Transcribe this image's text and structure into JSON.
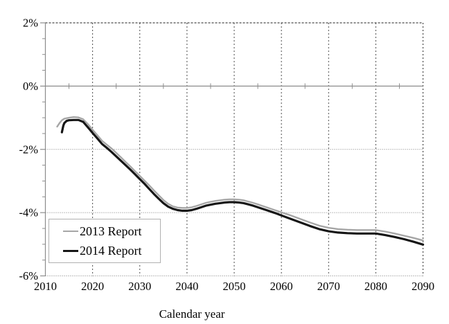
{
  "figure": {
    "background": "#ffffff",
    "text_color": "#000000"
  },
  "chart_data": {
    "type": "line",
    "title": "",
    "xlabel": "Calendar year",
    "ylabel": "",
    "xlim": [
      2010,
      2090
    ],
    "ylim": [
      -6,
      2
    ],
    "x_ticks": [
      2010,
      2020,
      2030,
      2040,
      2050,
      2060,
      2070,
      2080,
      2090
    ],
    "x_minor_ticks": [
      2015,
      2025,
      2035,
      2045,
      2055,
      2065,
      2075,
      2085
    ],
    "y_ticks": [
      "2%",
      "0%",
      "-2%",
      "-4%",
      "-6%"
    ],
    "y_tick_values": [
      2,
      0,
      -2,
      -4,
      -6
    ],
    "y_minor_ticks": [
      1.5,
      1.0,
      0.5,
      -0.5,
      -1.0,
      -1.5,
      -2.5,
      -3.0,
      -3.5,
      -4.5,
      -5.0,
      -5.5
    ],
    "grid": {
      "vertical_dashed_at": [
        2020,
        2030,
        2040,
        2050,
        2060,
        2070,
        2080
      ],
      "horizontal_dotted_at": [
        -2,
        -4
      ],
      "zero_axis_at": 0,
      "grid_on": true
    },
    "legend_position": "lower-left",
    "style": {
      "frame_color": "#4a4a4a",
      "grid_color": "#7a7a7a",
      "axis_color": "#8c8c8c",
      "legend_border_color": "#b0b0b0"
    },
    "series": [
      {
        "name": "2013 Report",
        "color": "#a6a6a6",
        "width": 2.4,
        "points": [
          [
            2012.5,
            -1.28
          ],
          [
            2013,
            -1.17
          ],
          [
            2013.5,
            -1.08
          ],
          [
            2014,
            -1.03
          ],
          [
            2015,
            -1.0
          ],
          [
            2016,
            -0.98
          ],
          [
            2017,
            -0.99
          ],
          [
            2018,
            -1.05
          ],
          [
            2019,
            -1.2
          ],
          [
            2020,
            -1.38
          ],
          [
            2021,
            -1.55
          ],
          [
            2022,
            -1.73
          ],
          [
            2023,
            -1.85
          ],
          [
            2024,
            -1.97
          ],
          [
            2025,
            -2.11
          ],
          [
            2026,
            -2.25
          ],
          [
            2027,
            -2.4
          ],
          [
            2028,
            -2.54
          ],
          [
            2029,
            -2.69
          ],
          [
            2030,
            -2.84
          ],
          [
            2031,
            -2.99
          ],
          [
            2032,
            -3.14
          ],
          [
            2033,
            -3.3
          ],
          [
            2034,
            -3.45
          ],
          [
            2035,
            -3.6
          ],
          [
            2036,
            -3.72
          ],
          [
            2037,
            -3.8
          ],
          [
            2038,
            -3.84
          ],
          [
            2039,
            -3.85
          ],
          [
            2040,
            -3.85
          ],
          [
            2041,
            -3.83
          ],
          [
            2042,
            -3.79
          ],
          [
            2043,
            -3.74
          ],
          [
            2044,
            -3.69
          ],
          [
            2045,
            -3.66
          ],
          [
            2046,
            -3.63
          ],
          [
            2047,
            -3.61
          ],
          [
            2048,
            -3.59
          ],
          [
            2049,
            -3.58
          ],
          [
            2050,
            -3.58
          ],
          [
            2051,
            -3.59
          ],
          [
            2052,
            -3.61
          ],
          [
            2053,
            -3.65
          ],
          [
            2054,
            -3.69
          ],
          [
            2055,
            -3.74
          ],
          [
            2056,
            -3.79
          ],
          [
            2057,
            -3.84
          ],
          [
            2058,
            -3.89
          ],
          [
            2059,
            -3.94
          ],
          [
            2060,
            -3.99
          ],
          [
            2062,
            -4.09
          ],
          [
            2064,
            -4.2
          ],
          [
            2066,
            -4.31
          ],
          [
            2068,
            -4.41
          ],
          [
            2070,
            -4.48
          ],
          [
            2072,
            -4.52
          ],
          [
            2074,
            -4.54
          ],
          [
            2076,
            -4.55
          ],
          [
            2078,
            -4.55
          ],
          [
            2080,
            -4.55
          ],
          [
            2082,
            -4.6
          ],
          [
            2084,
            -4.66
          ],
          [
            2086,
            -4.73
          ],
          [
            2088,
            -4.8
          ],
          [
            2090,
            -4.88
          ]
        ]
      },
      {
        "name": "2014 Report",
        "color": "#161616",
        "width": 3.2,
        "points": [
          [
            2013.5,
            -1.46
          ],
          [
            2013.8,
            -1.25
          ],
          [
            2014,
            -1.17
          ],
          [
            2014.5,
            -1.1
          ],
          [
            2015,
            -1.08
          ],
          [
            2016,
            -1.07
          ],
          [
            2017,
            -1.07
          ],
          [
            2018,
            -1.13
          ],
          [
            2019,
            -1.3
          ],
          [
            2020,
            -1.48
          ],
          [
            2021,
            -1.65
          ],
          [
            2022,
            -1.83
          ],
          [
            2023,
            -1.95
          ],
          [
            2024,
            -2.08
          ],
          [
            2025,
            -2.22
          ],
          [
            2026,
            -2.36
          ],
          [
            2027,
            -2.5
          ],
          [
            2028,
            -2.64
          ],
          [
            2029,
            -2.79
          ],
          [
            2030,
            -2.94
          ],
          [
            2031,
            -3.09
          ],
          [
            2032,
            -3.25
          ],
          [
            2033,
            -3.41
          ],
          [
            2034,
            -3.56
          ],
          [
            2035,
            -3.7
          ],
          [
            2036,
            -3.81
          ],
          [
            2037,
            -3.88
          ],
          [
            2038,
            -3.92
          ],
          [
            2039,
            -3.94
          ],
          [
            2040,
            -3.94
          ],
          [
            2041,
            -3.92
          ],
          [
            2042,
            -3.88
          ],
          [
            2043,
            -3.83
          ],
          [
            2044,
            -3.78
          ],
          [
            2045,
            -3.75
          ],
          [
            2046,
            -3.72
          ],
          [
            2047,
            -3.7
          ],
          [
            2048,
            -3.68
          ],
          [
            2049,
            -3.67
          ],
          [
            2050,
            -3.67
          ],
          [
            2051,
            -3.68
          ],
          [
            2052,
            -3.7
          ],
          [
            2053,
            -3.74
          ],
          [
            2054,
            -3.78
          ],
          [
            2055,
            -3.83
          ],
          [
            2056,
            -3.88
          ],
          [
            2057,
            -3.93
          ],
          [
            2058,
            -3.98
          ],
          [
            2059,
            -4.03
          ],
          [
            2060,
            -4.09
          ],
          [
            2062,
            -4.2
          ],
          [
            2064,
            -4.31
          ],
          [
            2066,
            -4.42
          ],
          [
            2068,
            -4.52
          ],
          [
            2070,
            -4.59
          ],
          [
            2072,
            -4.63
          ],
          [
            2074,
            -4.65
          ],
          [
            2076,
            -4.66
          ],
          [
            2078,
            -4.66
          ],
          [
            2080,
            -4.66
          ],
          [
            2082,
            -4.71
          ],
          [
            2084,
            -4.77
          ],
          [
            2086,
            -4.84
          ],
          [
            2088,
            -4.92
          ],
          [
            2090,
            -5.01
          ]
        ]
      }
    ]
  }
}
